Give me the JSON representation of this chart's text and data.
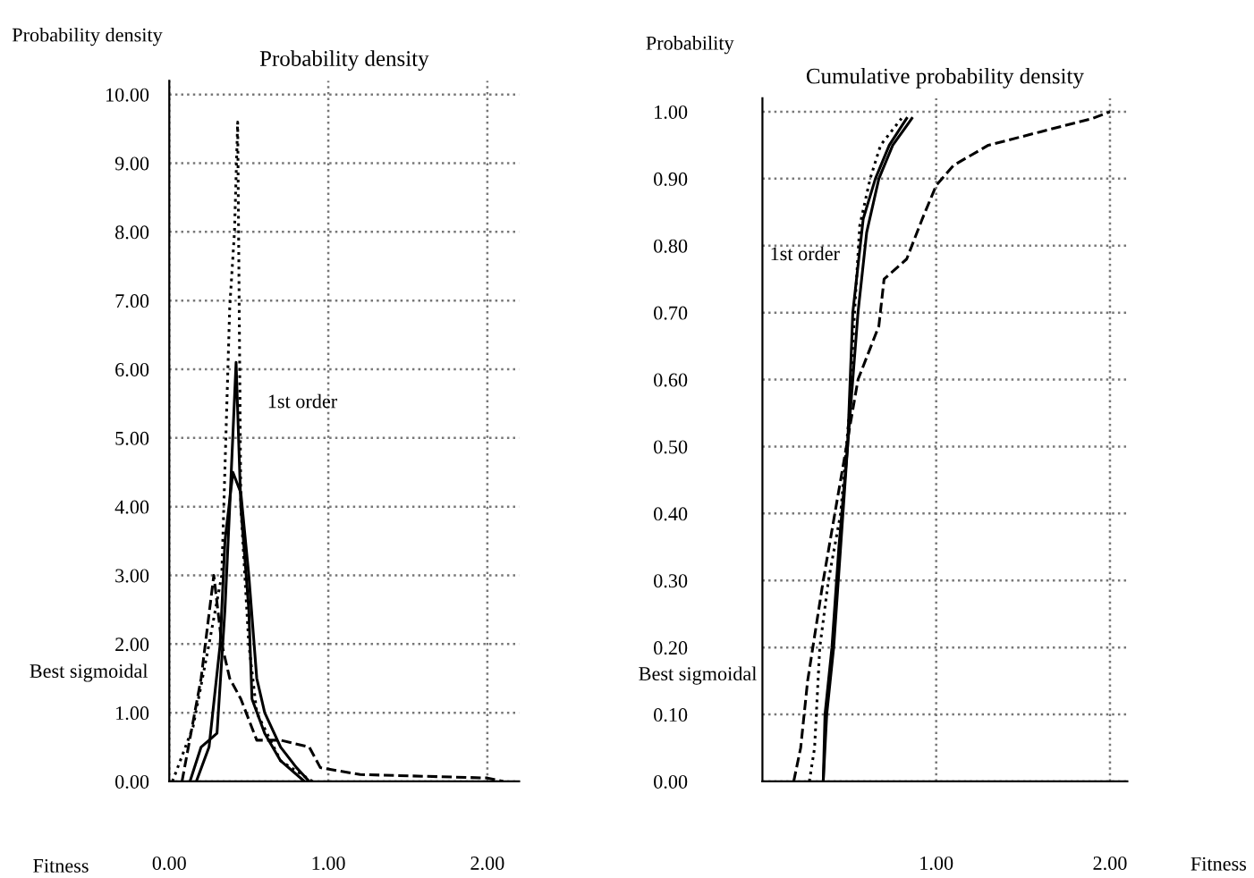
{
  "chart_data": [
    {
      "type": "line",
      "title": "Probability density",
      "xlabel": "Fitness",
      "ylabel": "Probability density",
      "xlim": [
        0,
        2.2
      ],
      "ylim": [
        0,
        10.2
      ],
      "xticks": [
        {
          "value": 0,
          "label": "0.00"
        },
        {
          "value": 1,
          "label": "1.00"
        },
        {
          "value": 2,
          "label": "2.00"
        }
      ],
      "yticks": [
        {
          "value": 0,
          "label": "0.00"
        },
        {
          "value": 1,
          "label": "1.00"
        },
        {
          "value": 2,
          "label": "2.00"
        },
        {
          "value": 3,
          "label": "3.00"
        },
        {
          "value": 4,
          "label": "4.00"
        },
        {
          "value": 5,
          "label": "5.00"
        },
        {
          "value": 6,
          "label": "6.00"
        },
        {
          "value": 7,
          "label": "7.00"
        },
        {
          "value": 8,
          "label": "8.00"
        },
        {
          "value": 9,
          "label": "9.00"
        },
        {
          "value": 10,
          "label": "10.00"
        }
      ],
      "grid": true,
      "annotations": [
        "1st order",
        "Best sigmoidal"
      ],
      "series": [
        {
          "color": "#000000",
          "line_style": "solid",
          "x": [
            0.17,
            0.25,
            0.32,
            0.35,
            0.4,
            0.45,
            0.5,
            0.55,
            0.6,
            0.7,
            0.8,
            0.88
          ],
          "values": [
            0,
            0.5,
            2,
            3.5,
            4.5,
            4.2,
            3,
            1.5,
            1,
            0.5,
            0.2,
            0
          ]
        },
        {
          "color": "#000000",
          "line_style": "solid",
          "x": [
            0.13,
            0.2,
            0.3,
            0.35,
            0.38,
            0.42,
            0.45,
            0.5,
            0.52,
            0.6,
            0.7,
            0.85
          ],
          "values": [
            0,
            0.5,
            0.7,
            2.5,
            4,
            6.1,
            4,
            2.5,
            1.2,
            0.7,
            0.3,
            0
          ]
        },
        {
          "color": "#000000",
          "line_style": "dashed",
          "x": [
            0.08,
            0.2,
            0.28,
            0.33,
            0.38,
            0.45,
            0.55,
            0.7,
            0.88,
            0.95,
            1.2,
            2.0,
            2.1
          ],
          "values": [
            0,
            1.5,
            3,
            2,
            1.5,
            1.2,
            0.6,
            0.6,
            0.5,
            0.2,
            0.1,
            0.05,
            0
          ]
        },
        {
          "color": "#000000",
          "line_style": "dotted",
          "x": [
            0.02,
            0.15,
            0.25,
            0.33,
            0.38,
            0.41,
            0.43,
            0.45,
            0.5,
            0.55,
            0.7,
            0.9
          ],
          "values": [
            0,
            0.8,
            2,
            3,
            6.9,
            8,
            9.6,
            4,
            2,
            1,
            0.3,
            0
          ]
        }
      ]
    },
    {
      "type": "line",
      "title": "Cumulative probability density",
      "xlabel": "Fitness",
      "ylabel": "Probability",
      "xlim": [
        0,
        2.1
      ],
      "ylim": [
        0,
        1.02
      ],
      "xticks": [
        {
          "value": 1,
          "label": "1.00"
        },
        {
          "value": 2,
          "label": "2.00"
        }
      ],
      "yticks": [
        {
          "value": 0,
          "label": "0.00"
        },
        {
          "value": 0.1,
          "label": "0.10"
        },
        {
          "value": 0.2,
          "label": "0.20"
        },
        {
          "value": 0.3,
          "label": "0.30"
        },
        {
          "value": 0.4,
          "label": "0.40"
        },
        {
          "value": 0.5,
          "label": "0.50"
        },
        {
          "value": 0.6,
          "label": "0.60"
        },
        {
          "value": 0.7,
          "label": "0.70"
        },
        {
          "value": 0.8,
          "label": "0.80"
        },
        {
          "value": 0.9,
          "label": "0.90"
        },
        {
          "value": 1,
          "label": "1.00"
        }
      ],
      "grid": true,
      "annotations": [
        "1st order",
        "Best sigmoidal"
      ],
      "series": [
        {
          "color": "#000000",
          "line_style": "solid",
          "x": [
            0.35,
            0.36,
            0.4,
            0.44,
            0.49,
            0.52,
            0.58,
            0.65,
            0.73,
            0.83
          ],
          "values": [
            0,
            0.1,
            0.2,
            0.35,
            0.5,
            0.7,
            0.84,
            0.9,
            0.95,
            0.99
          ]
        },
        {
          "color": "#000000",
          "line_style": "solid",
          "x": [
            0.35,
            0.37,
            0.41,
            0.45,
            0.49,
            0.55,
            0.6,
            0.67,
            0.75,
            0.86
          ],
          "values": [
            0,
            0.1,
            0.2,
            0.35,
            0.5,
            0.7,
            0.82,
            0.9,
            0.95,
            0.99
          ]
        },
        {
          "color": "#000000",
          "line_style": "dotted",
          "x": [
            0.27,
            0.3,
            0.33,
            0.38,
            0.45,
            0.5,
            0.53,
            0.56,
            0.62,
            0.68,
            0.8
          ],
          "values": [
            0,
            0.05,
            0.2,
            0.3,
            0.4,
            0.55,
            0.7,
            0.83,
            0.9,
            0.95,
            0.99
          ]
        },
        {
          "color": "#000000",
          "line_style": "dashed",
          "x": [
            0.18,
            0.22,
            0.26,
            0.35,
            0.45,
            0.55,
            0.67,
            0.7,
            0.83,
            0.92,
            1.0,
            1.1,
            1.3,
            1.6,
            1.9,
            2.0
          ],
          "values": [
            0,
            0.05,
            0.15,
            0.3,
            0.45,
            0.6,
            0.68,
            0.75,
            0.78,
            0.84,
            0.89,
            0.92,
            0.95,
            0.97,
            0.99,
            1.0
          ]
        }
      ]
    }
  ]
}
